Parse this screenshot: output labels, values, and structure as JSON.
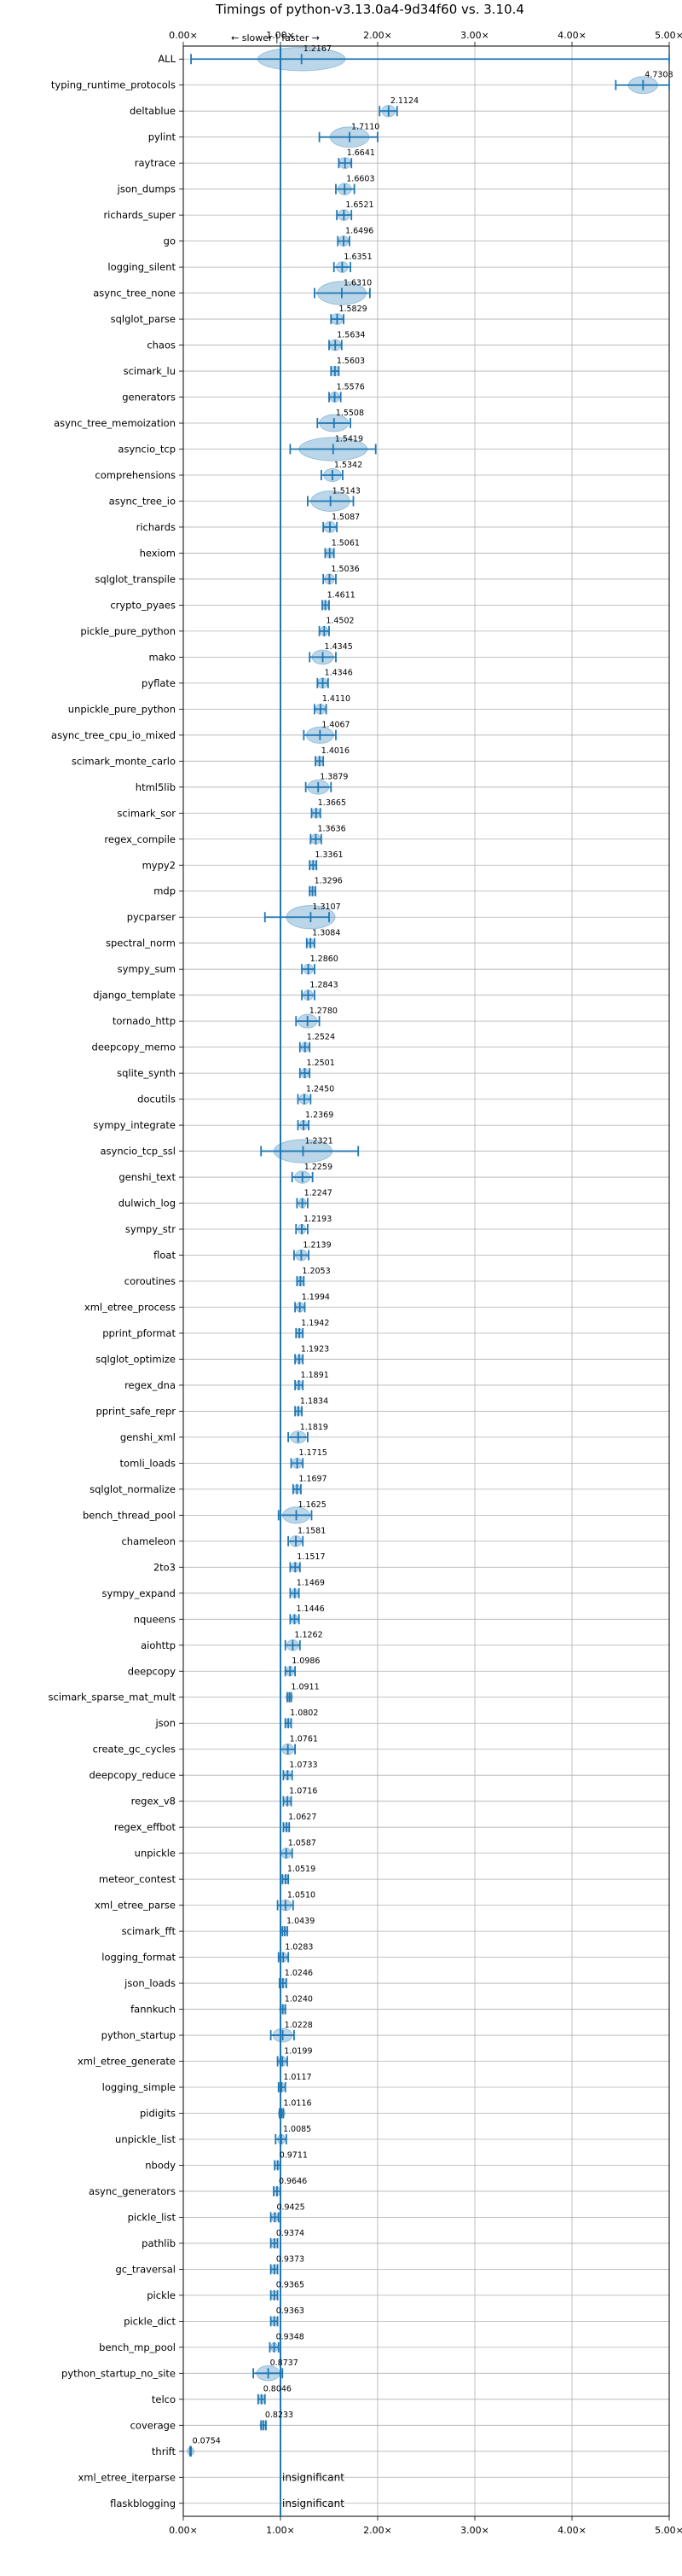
{
  "chart_data": {
    "type": "violin",
    "title": "Timings of python-v3.13.0a4-9d34f60 vs. 3.10.4",
    "annotation": "← slower | faster →",
    "xlim": [
      0,
      5.0
    ],
    "x_ticks": [
      "0.00×",
      "1.00×",
      "2.00×",
      "3.00×",
      "4.00×",
      "5.00×"
    ],
    "x_tick_values": [
      0,
      1,
      2,
      3,
      4,
      5
    ],
    "grid": true,
    "reference_line": 1.0,
    "insignificant_label": "insignificant",
    "benchmarks": [
      {
        "name": "ALL",
        "value": "1.2167",
        "mean": 1.2167,
        "lo": 0.08,
        "hi": 5.0,
        "spread": 0.45
      },
      {
        "name": "typing_runtime_protocols",
        "value": "4.7308",
        "mean": 4.7308,
        "lo": 4.45,
        "hi": 5.0,
        "spread": 0.15
      },
      {
        "name": "deltablue",
        "value": "2.1124",
        "mean": 2.1124,
        "lo": 2.02,
        "hi": 2.2,
        "spread": 0.07
      },
      {
        "name": "pylint",
        "value": "1.7110",
        "mean": 1.711,
        "lo": 1.4,
        "hi": 2.0,
        "spread": 0.2
      },
      {
        "name": "raytrace",
        "value": "1.6641",
        "mean": 1.6641,
        "lo": 1.6,
        "hi": 1.73,
        "spread": 0.06
      },
      {
        "name": "json_dumps",
        "value": "1.6603",
        "mean": 1.6603,
        "lo": 1.57,
        "hi": 1.76,
        "spread": 0.07
      },
      {
        "name": "richards_super",
        "value": "1.6521",
        "mean": 1.6521,
        "lo": 1.58,
        "hi": 1.73,
        "spread": 0.06
      },
      {
        "name": "go",
        "value": "1.6496",
        "mean": 1.6496,
        "lo": 1.59,
        "hi": 1.71,
        "spread": 0.05
      },
      {
        "name": "logging_silent",
        "value": "1.6351",
        "mean": 1.6351,
        "lo": 1.55,
        "hi": 1.72,
        "spread": 0.06
      },
      {
        "name": "async_tree_none",
        "value": "1.6310",
        "mean": 1.631,
        "lo": 1.35,
        "hi": 1.92,
        "spread": 0.25
      },
      {
        "name": "sqlglot_parse",
        "value": "1.5829",
        "mean": 1.5829,
        "lo": 1.52,
        "hi": 1.65,
        "spread": 0.06
      },
      {
        "name": "chaos",
        "value": "1.5634",
        "mean": 1.5634,
        "lo": 1.5,
        "hi": 1.63,
        "spread": 0.06
      },
      {
        "name": "scimark_lu",
        "value": "1.5603",
        "mean": 1.5603,
        "lo": 1.52,
        "hi": 1.6,
        "spread": 0.04
      },
      {
        "name": "generators",
        "value": "1.5576",
        "mean": 1.5576,
        "lo": 1.5,
        "hi": 1.62,
        "spread": 0.05
      },
      {
        "name": "async_tree_memoization",
        "value": "1.5508",
        "mean": 1.5508,
        "lo": 1.38,
        "hi": 1.72,
        "spread": 0.15
      },
      {
        "name": "asyncio_tcp",
        "value": "1.5419",
        "mean": 1.5419,
        "lo": 1.1,
        "hi": 1.98,
        "spread": 0.35
      },
      {
        "name": "comprehensions",
        "value": "1.5342",
        "mean": 1.5342,
        "lo": 1.42,
        "hi": 1.64,
        "spread": 0.09
      },
      {
        "name": "async_tree_io",
        "value": "1.5143",
        "mean": 1.5143,
        "lo": 1.28,
        "hi": 1.75,
        "spread": 0.2
      },
      {
        "name": "richards",
        "value": "1.5087",
        "mean": 1.5087,
        "lo": 1.44,
        "hi": 1.58,
        "spread": 0.06
      },
      {
        "name": "hexiom",
        "value": "1.5061",
        "mean": 1.5061,
        "lo": 1.46,
        "hi": 1.55,
        "spread": 0.04
      },
      {
        "name": "sqlglot_transpile",
        "value": "1.5036",
        "mean": 1.5036,
        "lo": 1.44,
        "hi": 1.57,
        "spread": 0.05
      },
      {
        "name": "crypto_pyaes",
        "value": "1.4611",
        "mean": 1.4611,
        "lo": 1.43,
        "hi": 1.5,
        "spread": 0.03
      },
      {
        "name": "pickle_pure_python",
        "value": "1.4502",
        "mean": 1.4502,
        "lo": 1.4,
        "hi": 1.5,
        "spread": 0.04
      },
      {
        "name": "mako",
        "value": "1.4345",
        "mean": 1.4345,
        "lo": 1.3,
        "hi": 1.57,
        "spread": 0.11
      },
      {
        "name": "pyflate",
        "value": "1.4346",
        "mean": 1.4346,
        "lo": 1.38,
        "hi": 1.49,
        "spread": 0.05
      },
      {
        "name": "unpickle_pure_python",
        "value": "1.4110",
        "mean": 1.411,
        "lo": 1.35,
        "hi": 1.47,
        "spread": 0.05
      },
      {
        "name": "async_tree_cpu_io_mixed",
        "value": "1.4067",
        "mean": 1.4067,
        "lo": 1.24,
        "hi": 1.57,
        "spread": 0.14
      },
      {
        "name": "scimark_monte_carlo",
        "value": "1.4016",
        "mean": 1.4016,
        "lo": 1.36,
        "hi": 1.44,
        "spread": 0.04
      },
      {
        "name": "html5lib",
        "value": "1.3879",
        "mean": 1.3879,
        "lo": 1.26,
        "hi": 1.52,
        "spread": 0.11
      },
      {
        "name": "scimark_sor",
        "value": "1.3665",
        "mean": 1.3665,
        "lo": 1.32,
        "hi": 1.41,
        "spread": 0.04
      },
      {
        "name": "regex_compile",
        "value": "1.3636",
        "mean": 1.3636,
        "lo": 1.31,
        "hi": 1.42,
        "spread": 0.05
      },
      {
        "name": "mypy2",
        "value": "1.3361",
        "mean": 1.3361,
        "lo": 1.3,
        "hi": 1.37,
        "spread": 0.03
      },
      {
        "name": "mdp",
        "value": "1.3296",
        "mean": 1.3296,
        "lo": 1.3,
        "hi": 1.36,
        "spread": 0.03
      },
      {
        "name": "pycparser",
        "value": "1.3107",
        "mean": 1.3107,
        "lo": 0.84,
        "hi": 1.5,
        "spread": 0.25
      },
      {
        "name": "spectral_norm",
        "value": "1.3084",
        "mean": 1.3084,
        "lo": 1.27,
        "hi": 1.35,
        "spread": 0.03
      },
      {
        "name": "sympy_sum",
        "value": "1.2860",
        "mean": 1.286,
        "lo": 1.22,
        "hi": 1.35,
        "spread": 0.05
      },
      {
        "name": "django_template",
        "value": "1.2843",
        "mean": 1.2843,
        "lo": 1.22,
        "hi": 1.35,
        "spread": 0.05
      },
      {
        "name": "tornado_http",
        "value": "1.2780",
        "mean": 1.278,
        "lo": 1.16,
        "hi": 1.4,
        "spread": 0.1
      },
      {
        "name": "deepcopy_memo",
        "value": "1.2524",
        "mean": 1.2524,
        "lo": 1.2,
        "hi": 1.3,
        "spread": 0.04
      },
      {
        "name": "sqlite_synth",
        "value": "1.2501",
        "mean": 1.2501,
        "lo": 1.2,
        "hi": 1.3,
        "spread": 0.04
      },
      {
        "name": "docutils",
        "value": "1.2450",
        "mean": 1.245,
        "lo": 1.18,
        "hi": 1.31,
        "spread": 0.05
      },
      {
        "name": "sympy_integrate",
        "value": "1.2369",
        "mean": 1.2369,
        "lo": 1.18,
        "hi": 1.29,
        "spread": 0.04
      },
      {
        "name": "asyncio_tcp_ssl",
        "value": "1.2321",
        "mean": 1.2321,
        "lo": 0.8,
        "hi": 1.8,
        "spread": 0.3
      },
      {
        "name": "genshi_text",
        "value": "1.2259",
        "mean": 1.2259,
        "lo": 1.12,
        "hi": 1.33,
        "spread": 0.08
      },
      {
        "name": "dulwich_log",
        "value": "1.2247",
        "mean": 1.2247,
        "lo": 1.17,
        "hi": 1.28,
        "spread": 0.04
      },
      {
        "name": "sympy_str",
        "value": "1.2193",
        "mean": 1.2193,
        "lo": 1.16,
        "hi": 1.28,
        "spread": 0.04
      },
      {
        "name": "float",
        "value": "1.2139",
        "mean": 1.2139,
        "lo": 1.14,
        "hi": 1.29,
        "spread": 0.06
      },
      {
        "name": "coroutines",
        "value": "1.2053",
        "mean": 1.2053,
        "lo": 1.17,
        "hi": 1.24,
        "spread": 0.03
      },
      {
        "name": "xml_etree_process",
        "value": "1.1994",
        "mean": 1.1994,
        "lo": 1.15,
        "hi": 1.25,
        "spread": 0.04
      },
      {
        "name": "pprint_pformat",
        "value": "1.1942",
        "mean": 1.1942,
        "lo": 1.16,
        "hi": 1.23,
        "spread": 0.03
      },
      {
        "name": "sqlglot_optimize",
        "value": "1.1923",
        "mean": 1.1923,
        "lo": 1.15,
        "hi": 1.23,
        "spread": 0.03
      },
      {
        "name": "regex_dna",
        "value": "1.1891",
        "mean": 1.1891,
        "lo": 1.15,
        "hi": 1.23,
        "spread": 0.03
      },
      {
        "name": "pprint_safe_repr",
        "value": "1.1834",
        "mean": 1.1834,
        "lo": 1.15,
        "hi": 1.22,
        "spread": 0.03
      },
      {
        "name": "genshi_xml",
        "value": "1.1819",
        "mean": 1.1819,
        "lo": 1.08,
        "hi": 1.28,
        "spread": 0.08
      },
      {
        "name": "tomli_loads",
        "value": "1.1715",
        "mean": 1.1715,
        "lo": 1.11,
        "hi": 1.23,
        "spread": 0.05
      },
      {
        "name": "sqlglot_normalize",
        "value": "1.1697",
        "mean": 1.1697,
        "lo": 1.13,
        "hi": 1.21,
        "spread": 0.03
      },
      {
        "name": "bench_thread_pool",
        "value": "1.1625",
        "mean": 1.1625,
        "lo": 0.98,
        "hi": 1.32,
        "spread": 0.14
      },
      {
        "name": "chameleon",
        "value": "1.1581",
        "mean": 1.1581,
        "lo": 1.08,
        "hi": 1.23,
        "spread": 0.06
      },
      {
        "name": "2to3",
        "value": "1.1517",
        "mean": 1.1517,
        "lo": 1.1,
        "hi": 1.2,
        "spread": 0.04
      },
      {
        "name": "sympy_expand",
        "value": "1.1469",
        "mean": 1.1469,
        "lo": 1.1,
        "hi": 1.19,
        "spread": 0.03
      },
      {
        "name": "nqueens",
        "value": "1.1446",
        "mean": 1.1446,
        "lo": 1.1,
        "hi": 1.19,
        "spread": 0.03
      },
      {
        "name": "aiohttp",
        "value": "1.1262",
        "mean": 1.1262,
        "lo": 1.05,
        "hi": 1.2,
        "spread": 0.06
      },
      {
        "name": "deepcopy",
        "value": "1.0986",
        "mean": 1.0986,
        "lo": 1.05,
        "hi": 1.15,
        "spread": 0.04
      },
      {
        "name": "scimark_sparse_mat_mult",
        "value": "1.0911",
        "mean": 1.0911,
        "lo": 1.07,
        "hi": 1.11,
        "spread": 0.02
      },
      {
        "name": "json",
        "value": "1.0802",
        "mean": 1.0802,
        "lo": 1.05,
        "hi": 1.11,
        "spread": 0.02
      },
      {
        "name": "create_gc_cycles",
        "value": "1.0761",
        "mean": 1.0761,
        "lo": 1.0,
        "hi": 1.15,
        "spread": 0.06
      },
      {
        "name": "deepcopy_reduce",
        "value": "1.0733",
        "mean": 1.0733,
        "lo": 1.03,
        "hi": 1.12,
        "spread": 0.03
      },
      {
        "name": "regex_v8",
        "value": "1.0716",
        "mean": 1.0716,
        "lo": 1.03,
        "hi": 1.11,
        "spread": 0.03
      },
      {
        "name": "regex_effbot",
        "value": "1.0627",
        "mean": 1.0627,
        "lo": 1.03,
        "hi": 1.09,
        "spread": 0.02
      },
      {
        "name": "unpickle",
        "value": "1.0587",
        "mean": 1.0587,
        "lo": 1.0,
        "hi": 1.12,
        "spread": 0.05
      },
      {
        "name": "meteor_contest",
        "value": "1.0519",
        "mean": 1.0519,
        "lo": 1.02,
        "hi": 1.08,
        "spread": 0.02
      },
      {
        "name": "xml_etree_parse",
        "value": "1.0510",
        "mean": 1.051,
        "lo": 0.97,
        "hi": 1.13,
        "spread": 0.06
      },
      {
        "name": "scimark_fft",
        "value": "1.0439",
        "mean": 1.0439,
        "lo": 1.02,
        "hi": 1.07,
        "spread": 0.02
      },
      {
        "name": "logging_format",
        "value": "1.0283",
        "mean": 1.0283,
        "lo": 0.98,
        "hi": 1.08,
        "spread": 0.04
      },
      {
        "name": "json_loads",
        "value": "1.0246",
        "mean": 1.0246,
        "lo": 0.99,
        "hi": 1.06,
        "spread": 0.03
      },
      {
        "name": "fannkuch",
        "value": "1.0240",
        "mean": 1.024,
        "lo": 1.0,
        "hi": 1.05,
        "spread": 0.02
      },
      {
        "name": "python_startup",
        "value": "1.0228",
        "mean": 1.0228,
        "lo": 0.9,
        "hi": 1.14,
        "spread": 0.1
      },
      {
        "name": "xml_etree_generate",
        "value": "1.0199",
        "mean": 1.0199,
        "lo": 0.97,
        "hi": 1.07,
        "spread": 0.04
      },
      {
        "name": "logging_simple",
        "value": "1.0117",
        "mean": 1.0117,
        "lo": 0.98,
        "hi": 1.05,
        "spread": 0.03
      },
      {
        "name": "pidigits",
        "value": "1.0116",
        "mean": 1.0116,
        "lo": 0.99,
        "hi": 1.03,
        "spread": 0.02
      },
      {
        "name": "unpickle_list",
        "value": "1.0085",
        "mean": 1.0085,
        "lo": 0.95,
        "hi": 1.06,
        "spread": 0.04
      },
      {
        "name": "nbody",
        "value": "0.9711",
        "mean": 0.9711,
        "lo": 0.94,
        "hi": 1.0,
        "spread": 0.02
      },
      {
        "name": "async_generators",
        "value": "0.9646",
        "mean": 0.9646,
        "lo": 0.93,
        "hi": 1.0,
        "spread": 0.03
      },
      {
        "name": "pickle_list",
        "value": "0.9425",
        "mean": 0.9425,
        "lo": 0.9,
        "hi": 0.98,
        "spread": 0.03
      },
      {
        "name": "pathlib",
        "value": "0.9374",
        "mean": 0.9374,
        "lo": 0.9,
        "hi": 0.97,
        "spread": 0.03
      },
      {
        "name": "gc_traversal",
        "value": "0.9373",
        "mean": 0.9373,
        "lo": 0.9,
        "hi": 0.97,
        "spread": 0.03
      },
      {
        "name": "pickle",
        "value": "0.9365",
        "mean": 0.9365,
        "lo": 0.9,
        "hi": 0.97,
        "spread": 0.03
      },
      {
        "name": "pickle_dict",
        "value": "0.9363",
        "mean": 0.9363,
        "lo": 0.9,
        "hi": 0.97,
        "spread": 0.03
      },
      {
        "name": "bench_mp_pool",
        "value": "0.9348",
        "mean": 0.9348,
        "lo": 0.89,
        "hi": 0.98,
        "spread": 0.03
      },
      {
        "name": "python_startup_no_site",
        "value": "0.8737",
        "mean": 0.8737,
        "lo": 0.72,
        "hi": 1.02,
        "spread": 0.12
      },
      {
        "name": "telco",
        "value": "0.8046",
        "mean": 0.8046,
        "lo": 0.77,
        "hi": 0.84,
        "spread": 0.03
      },
      {
        "name": "coverage",
        "value": "0.8233",
        "mean": 0.8233,
        "lo": 0.8,
        "hi": 0.85,
        "spread": 0.02
      },
      {
        "name": "thrift",
        "value": "0.0754",
        "mean": 0.0754,
        "lo": 0.07,
        "hi": 0.08,
        "spread": 0.01
      },
      {
        "name": "xml_etree_iterparse",
        "value": "",
        "mean": null,
        "insignificant": true
      },
      {
        "name": "flaskblogging",
        "value": "",
        "mean": null,
        "insignificant": true
      }
    ]
  }
}
